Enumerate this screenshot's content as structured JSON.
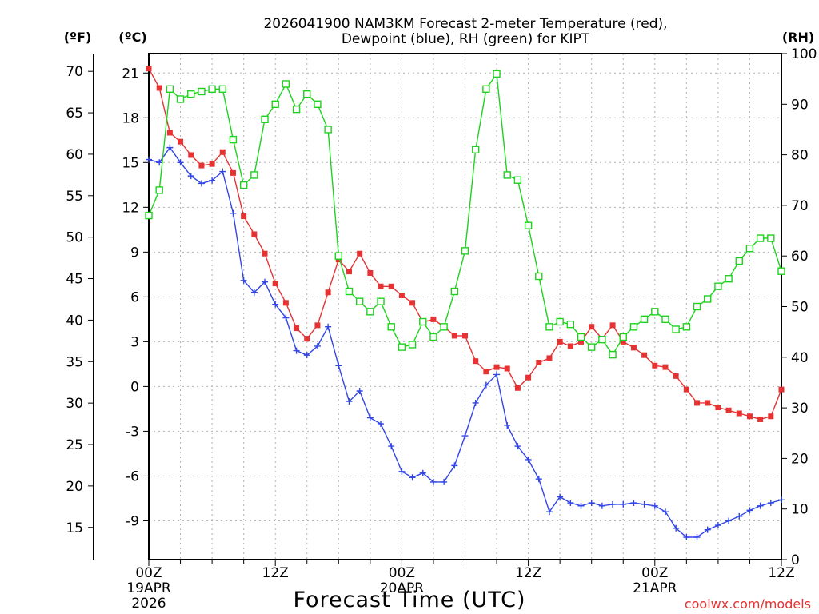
{
  "header": {
    "title_line1": "2026041900 NAM3KM Forecast 2-meter Temperature (red),",
    "title_line2": "Dewpoint (blue), RH (green) for KIPT"
  },
  "credit": "coolwx.com/models",
  "chart_data": {
    "type": "line",
    "title": "2026041900 NAM3KM Forecast 2-meter Temperature (red), Dewpoint (blue), RH (green) for KIPT",
    "xlabel": "Forecast Time (UTC)",
    "x": [
      0,
      1,
      2,
      3,
      4,
      5,
      6,
      7,
      8,
      9,
      10,
      11,
      12,
      13,
      14,
      15,
      16,
      17,
      18,
      19,
      20,
      21,
      22,
      23,
      24,
      25,
      26,
      27,
      28,
      29,
      30,
      31,
      32,
      33,
      34,
      35,
      36,
      37,
      38,
      39,
      40,
      41,
      42,
      43,
      44,
      45,
      46,
      47,
      48,
      49,
      50,
      51,
      52,
      53,
      54,
      55,
      56,
      57,
      58,
      59,
      60
    ],
    "xlim": [
      0,
      60
    ],
    "x_ticks": [
      {
        "x": 0,
        "line1": "00Z",
        "line2": "19APR",
        "line3": "2026"
      },
      {
        "x": 12,
        "line1": "12Z",
        "line2": "",
        "line3": ""
      },
      {
        "x": 24,
        "line1": "00Z",
        "line2": "20APR",
        "line3": ""
      },
      {
        "x": 36,
        "line1": "12Z",
        "line2": "",
        "line3": ""
      },
      {
        "x": 48,
        "line1": "00Z",
        "line2": "21APR",
        "line3": ""
      },
      {
        "x": 60,
        "line1": "12Z",
        "line2": "",
        "line3": ""
      }
    ],
    "left_axis_c": {
      "label": "(ºC)",
      "range": [
        -11.6,
        22.3
      ],
      "ticks": [
        21,
        18,
        15,
        12,
        9,
        6,
        3,
        0,
        -3,
        -6,
        -9
      ]
    },
    "left_axis_f": {
      "label": "(ºF)",
      "ticks": [
        70,
        65,
        60,
        55,
        50,
        45,
        40,
        35,
        30,
        25,
        20,
        15
      ]
    },
    "right_axis_rh": {
      "label": "(RH)",
      "range": [
        0,
        100
      ],
      "ticks": [
        100,
        90,
        80,
        70,
        60,
        50,
        40,
        30,
        20,
        10,
        0
      ]
    },
    "series": [
      {
        "name": "Temperature",
        "units": "C",
        "color": "#e63232",
        "marker": "filled-square",
        "values": [
          21.3,
          20.0,
          17.0,
          16.4,
          15.5,
          14.8,
          14.9,
          15.7,
          14.3,
          11.4,
          10.2,
          8.9,
          6.9,
          5.6,
          3.9,
          3.2,
          4.1,
          6.3,
          8.5,
          7.7,
          8.9,
          7.6,
          6.7,
          6.7,
          6.1,
          5.6,
          4.3,
          4.5,
          4.0,
          3.4,
          3.4,
          1.7,
          1.0,
          1.3,
          1.2,
          -0.1,
          0.6,
          1.6,
          1.9,
          3.0,
          2.7,
          3.0,
          4.0,
          3.2,
          4.1,
          3.0,
          2.6,
          2.1,
          1.4,
          1.3,
          0.7,
          -0.2,
          -1.1,
          -1.1,
          -1.4,
          -1.6,
          -1.8,
          -2.0,
          -2.2,
          -2.0,
          -0.2
        ]
      },
      {
        "name": "Dewpoint",
        "units": "C",
        "color": "#3246e6",
        "marker": "plus",
        "values": [
          15.2,
          15.0,
          16.0,
          15.0,
          14.1,
          13.6,
          13.8,
          14.4,
          11.6,
          7.1,
          6.3,
          7.0,
          5.5,
          4.6,
          2.4,
          2.1,
          2.7,
          4.0,
          1.4,
          -1.0,
          -0.3,
          -2.1,
          -2.5,
          -4.0,
          -5.7,
          -6.1,
          -5.8,
          -6.4,
          -6.4,
          -5.3,
          -3.3,
          -1.1,
          0.1,
          0.8,
          -2.6,
          -4.0,
          -4.9,
          -6.2,
          -8.4,
          -7.4,
          -7.8,
          -8.0,
          -7.8,
          -8.0,
          -7.9,
          -7.9,
          -7.8,
          -7.9,
          -8.0,
          -8.4,
          -9.5,
          -10.1,
          -10.1,
          -9.6,
          -9.3,
          -9.0,
          -8.7,
          -8.3,
          -8.0,
          -7.8,
          -7.6
        ]
      },
      {
        "name": "Relative Humidity",
        "units": "%",
        "color": "#1ed21e",
        "marker": "open-square",
        "values": [
          68,
          73,
          93,
          91,
          92,
          92.5,
          93,
          93,
          83,
          74,
          76,
          87,
          90,
          94,
          89,
          92,
          90,
          85,
          60,
          53,
          51,
          49,
          51,
          46,
          42,
          42.5,
          47,
          44,
          46,
          53,
          61,
          81,
          93,
          96,
          76,
          75,
          66,
          56,
          46,
          47,
          46.5,
          44,
          42,
          43.5,
          40.5,
          44,
          46,
          47.5,
          49,
          47.5,
          45.5,
          46,
          50,
          51.5,
          54,
          55.5,
          59,
          61.5,
          63.5,
          63.5,
          57
        ]
      }
    ]
  }
}
